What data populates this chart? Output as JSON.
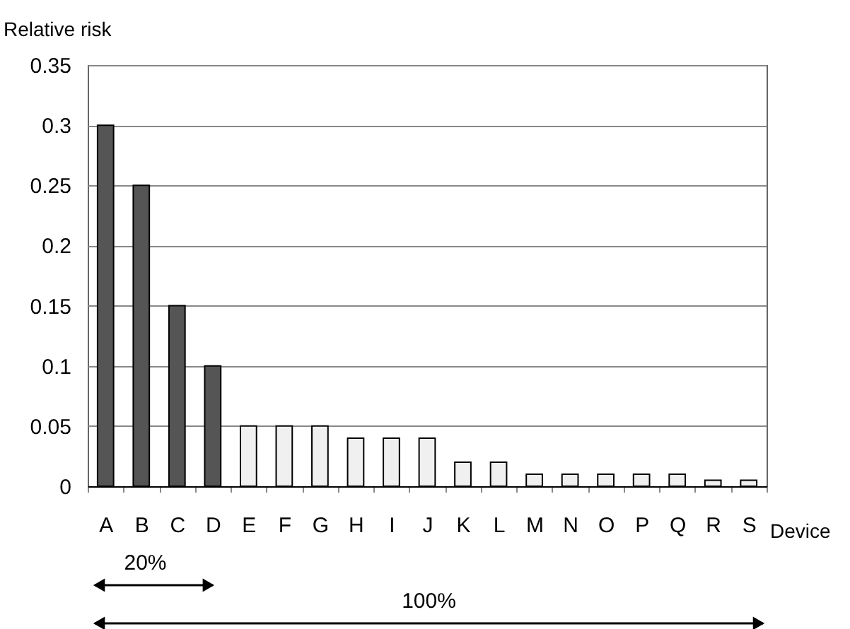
{
  "chart_data": {
    "type": "bar",
    "xlabel": "Device",
    "ylabel": "Relative risk",
    "categories": [
      "A",
      "B",
      "C",
      "D",
      "E",
      "F",
      "G",
      "H",
      "I",
      "J",
      "K",
      "L",
      "M",
      "N",
      "O",
      "P",
      "Q",
      "R",
      "S"
    ],
    "values": [
      0.3,
      0.25,
      0.15,
      0.1,
      0.05,
      0.05,
      0.05,
      0.04,
      0.04,
      0.04,
      0.02,
      0.02,
      0.01,
      0.01,
      0.01,
      0.01,
      0.01,
      0.005,
      0.005
    ],
    "colors": [
      "#555555",
      "#555555",
      "#555555",
      "#555555",
      "#f0f0f0",
      "#f0f0f0",
      "#f0f0f0",
      "#f0f0f0",
      "#f0f0f0",
      "#f0f0f0",
      "#f0f0f0",
      "#f0f0f0",
      "#f0f0f0",
      "#f0f0f0",
      "#f0f0f0",
      "#f0f0f0",
      "#f0f0f0",
      "#f0f0f0",
      "#f0f0f0"
    ],
    "ylim": [
      0,
      0.35
    ],
    "yticks": [
      0,
      0.05,
      0.1,
      0.15,
      0.2,
      0.25,
      0.3,
      0.35
    ],
    "grid": "y",
    "annotations": [
      "20%",
      "100%"
    ]
  }
}
